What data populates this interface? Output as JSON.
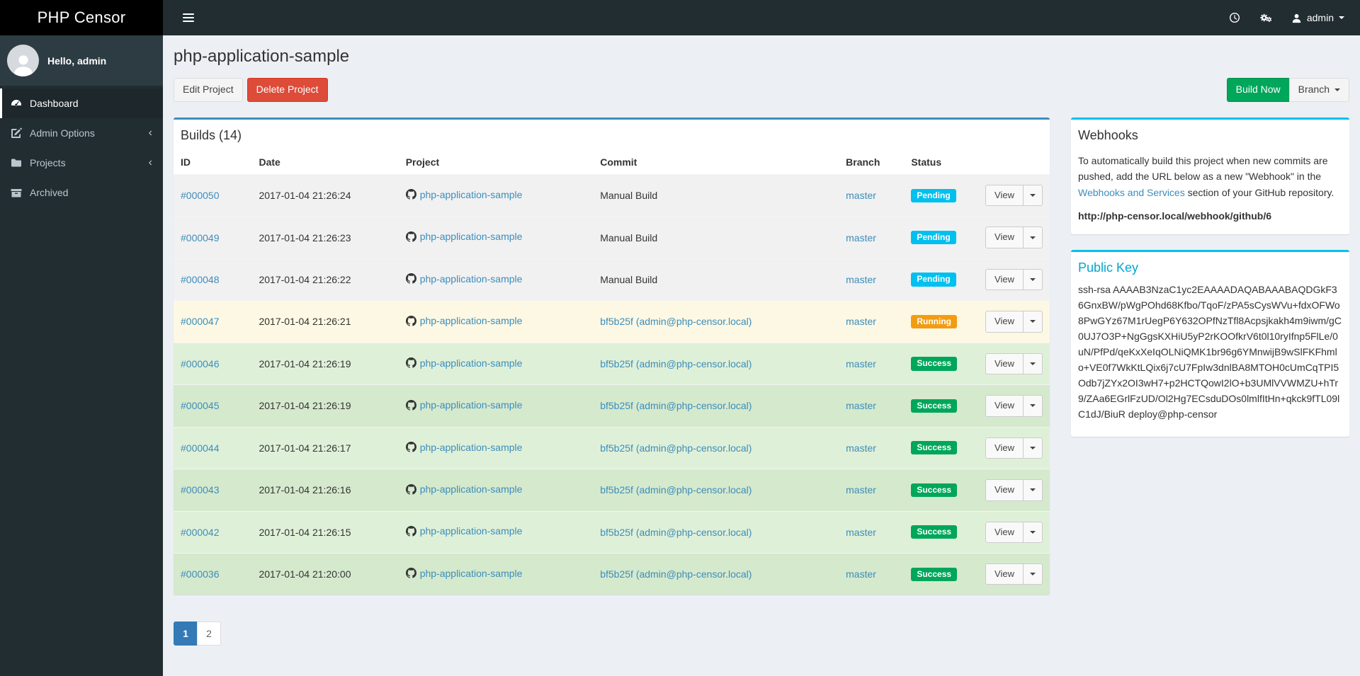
{
  "brand": "PHP Censor",
  "navbar": {
    "user_label": "admin",
    "icons": [
      "clock-icon",
      "cogs-icon",
      "user-icon"
    ]
  },
  "sidebar": {
    "greeting": "Hello, admin",
    "items": [
      {
        "label": "Dashboard",
        "icon": "tachometer-icon",
        "active": true,
        "has_submenu": false
      },
      {
        "label": "Admin Options",
        "icon": "pencil-square-icon",
        "active": false,
        "has_submenu": true
      },
      {
        "label": "Projects",
        "icon": "folder-icon",
        "active": false,
        "has_submenu": true
      },
      {
        "label": "Archived",
        "icon": "archive-icon",
        "active": false,
        "has_submenu": false
      }
    ],
    "submenu_chevron": "‹"
  },
  "page": {
    "title": "php-application-sample",
    "edit_button": "Edit Project",
    "delete_button": "Delete Project",
    "build_now_button": "Build Now",
    "branch_button": "Branch"
  },
  "builds": {
    "box_title": "Builds (14)",
    "columns": [
      "ID",
      "Date",
      "Project",
      "Commit",
      "Branch",
      "Status",
      ""
    ],
    "view_button_label": "View",
    "rows": [
      {
        "id": "#000050",
        "date": "2017-01-04 21:26:24",
        "project": "php-application-sample",
        "commit": "Manual Build",
        "commit_is_link": false,
        "branch": "master",
        "status": "Pending",
        "status_type": "pending"
      },
      {
        "id": "#000049",
        "date": "2017-01-04 21:26:23",
        "project": "php-application-sample",
        "commit": "Manual Build",
        "commit_is_link": false,
        "branch": "master",
        "status": "Pending",
        "status_type": "pending"
      },
      {
        "id": "#000048",
        "date": "2017-01-04 21:26:22",
        "project": "php-application-sample",
        "commit": "Manual Build",
        "commit_is_link": false,
        "branch": "master",
        "status": "Pending",
        "status_type": "pending"
      },
      {
        "id": "#000047",
        "date": "2017-01-04 21:26:21",
        "project": "php-application-sample",
        "commit": "bf5b25f (admin@php-censor.local)",
        "commit_is_link": true,
        "branch": "master",
        "status": "Running",
        "status_type": "running"
      },
      {
        "id": "#000046",
        "date": "2017-01-04 21:26:19",
        "project": "php-application-sample",
        "commit": "bf5b25f (admin@php-censor.local)",
        "commit_is_link": true,
        "branch": "master",
        "status": "Success",
        "status_type": "success"
      },
      {
        "id": "#000045",
        "date": "2017-01-04 21:26:19",
        "project": "php-application-sample",
        "commit": "bf5b25f (admin@php-censor.local)",
        "commit_is_link": true,
        "branch": "master",
        "status": "Success",
        "status_type": "success"
      },
      {
        "id": "#000044",
        "date": "2017-01-04 21:26:17",
        "project": "php-application-sample",
        "commit": "bf5b25f (admin@php-censor.local)",
        "commit_is_link": true,
        "branch": "master",
        "status": "Success",
        "status_type": "success"
      },
      {
        "id": "#000043",
        "date": "2017-01-04 21:26:16",
        "project": "php-application-sample",
        "commit": "bf5b25f (admin@php-censor.local)",
        "commit_is_link": true,
        "branch": "master",
        "status": "Success",
        "status_type": "success"
      },
      {
        "id": "#000042",
        "date": "2017-01-04 21:26:15",
        "project": "php-application-sample",
        "commit": "bf5b25f (admin@php-censor.local)",
        "commit_is_link": true,
        "branch": "master",
        "status": "Success",
        "status_type": "success"
      },
      {
        "id": "#000036",
        "date": "2017-01-04 21:20:00",
        "project": "php-application-sample",
        "commit": "bf5b25f (admin@php-censor.local)",
        "commit_is_link": true,
        "branch": "master",
        "status": "Success",
        "status_type": "success"
      }
    ]
  },
  "pagination": {
    "pages": [
      "1",
      "2"
    ],
    "active": "1"
  },
  "webhooks": {
    "title": "Webhooks",
    "text_before": "To automatically build this project when new commits are pushed, add the URL below as a new \"Webhook\" in the ",
    "link_text": "Webhooks and Services",
    "text_after": " section of your GitHub repository.",
    "url": "http://php-censor.local/webhook/github/6"
  },
  "public_key": {
    "title": "Public Key",
    "key": "ssh-rsa AAAAB3NzaC1yc2EAAAADAQABAAABAQDGkF36GnxBW/pWgPOhd68Kfbo/TqoF/zPA5sCysWVu+fdxOFWo8PwGYz67M1rUegP6Y632OPfNzTfl8Acpsjkakh4m9iwm/gC0UJ7O3P+NgGgsKXHiU5yP2rKOOfkrV6t0l10ryIfnp5FlLe/0uN/PfPd/qeKxXeIqOLNiQMK1br96g6YMnwijB9wSlFKFhmlo+VE0f7WkKtLQix6j7cU7FpIw3dnlBA8MTOH0cUmCqTPI5Odb7jZYx2OI3wH7+p2HCTQowI2lO+b3UMlVVWMZU+hTr9/ZAa6EGrlFzUD/Ol2Hg7ECsduDOs0lmlfItHn+qkck9fTL09lC1dJ/BiuR deploy@php-censor"
  },
  "colors": {
    "primary_blue": "#3c8dbc",
    "info_cyan": "#00c0ef",
    "success_green": "#00a65a",
    "warning_orange": "#f39c12",
    "danger_red": "#dd4b39",
    "pagination_active": "#337ab7",
    "row_pending": "#f1f1f1",
    "row_running": "#fcf8e3",
    "row_success": "#dff0d8"
  }
}
